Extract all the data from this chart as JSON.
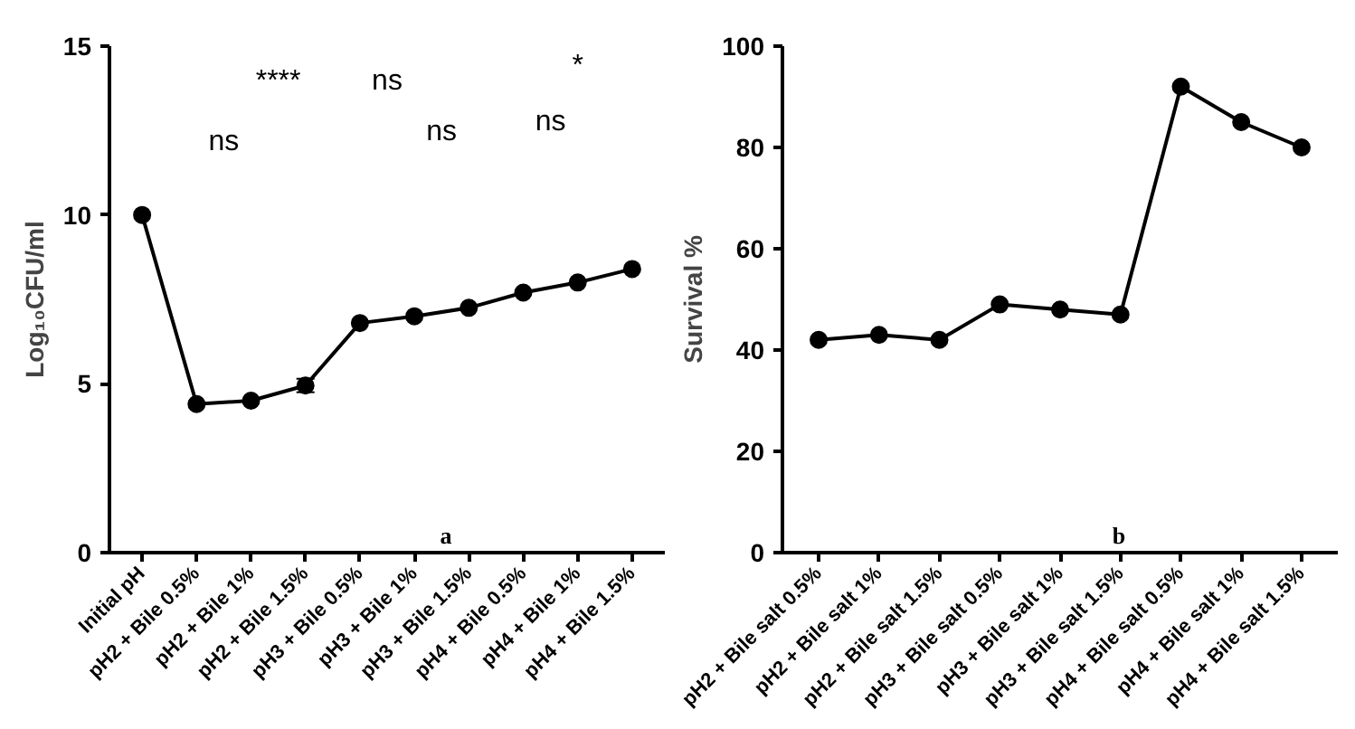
{
  "chart_data": [
    {
      "type": "line",
      "ylabel": "Log₁₀CFU/ml",
      "categories": [
        "Initial pH",
        "pH2 + Bile 0.5%",
        "pH2 + Bile 1%",
        "pH2 + Bile 1.5%",
        "pH3 + Bile 0.5%",
        "pH3 + Bile 1%",
        "pH3 + Bile 1.5%",
        "pH4 + Bile 0.5%",
        "pH4 + Bile 1%",
        "pH4 + Bile 1.5%"
      ],
      "series": [
        {
          "color": "#000000",
          "values": [
            10,
            4.4,
            4.5,
            4.95,
            6.8,
            7.0,
            7.25,
            7.7,
            8.0,
            8.4
          ],
          "errors": [
            null,
            null,
            null,
            0.2,
            null,
            null,
            null,
            null,
            null,
            null
          ]
        }
      ],
      "ylim": [
        0,
        15
      ],
      "yticks": [
        0,
        5,
        10,
        15
      ],
      "grid": false,
      "marker": "circle",
      "line_style": "solid",
      "annotations": [
        "ns",
        "****",
        "ns",
        "ns",
        "ns",
        "*",
        "a"
      ]
    },
    {
      "type": "line",
      "ylabel": "Survival %",
      "categories": [
        "pH2 + Bile salt 0.5%",
        "pH2 + Bile salt 1%",
        "pH2 + Bile salt 1.5%",
        "pH3 + Bile salt 0.5%",
        "pH3 + Bile salt 1%",
        "pH3 + Bile salt 1.5%",
        "pH4 + Bile salt 0.5%",
        "pH4 + Bile salt 1%",
        "pH4 + Bile salt 1.5%"
      ],
      "series": [
        {
          "color": "#000000",
          "values": [
            42,
            43,
            42,
            49,
            48,
            47,
            92,
            85,
            80
          ]
        }
      ],
      "ylim": [
        0,
        100
      ],
      "yticks": [
        0,
        20,
        40,
        60,
        80,
        100
      ],
      "grid": false,
      "marker": "circle",
      "line_style": "solid",
      "annotations": [
        "b"
      ]
    }
  ]
}
